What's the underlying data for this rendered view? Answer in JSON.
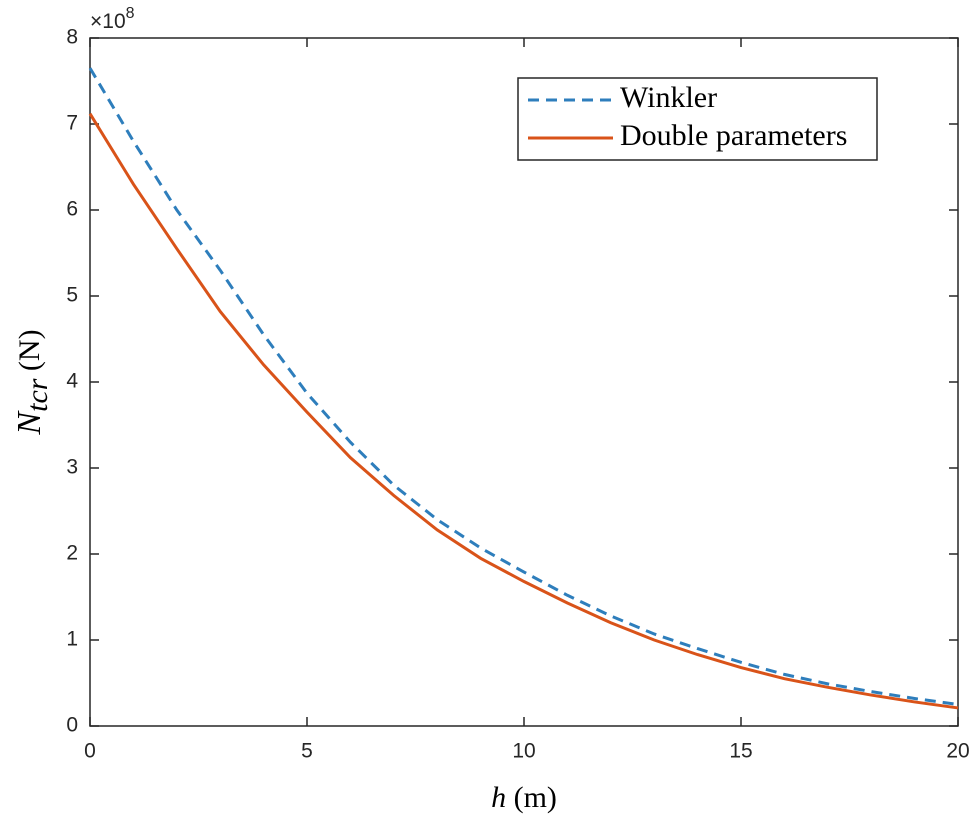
{
  "chart_data": {
    "type": "line",
    "xlabel": {
      "symbol": "h",
      "unit": "(m)"
    },
    "ylabel": {
      "symbol": "N",
      "subscript": "tcr",
      "unit": "(N)"
    },
    "y_scale_label": {
      "base": "×10",
      "exponent": "8"
    },
    "x": [
      0,
      1,
      2,
      3,
      4,
      5,
      6,
      7,
      8,
      9,
      10,
      11,
      12,
      13,
      14,
      15,
      16,
      17,
      18,
      19,
      20
    ],
    "series": [
      {
        "name": "Winkler",
        "color": "#2e7ebc",
        "linestyle": "dashed",
        "values": [
          7.65,
          6.8,
          6.0,
          5.3,
          4.55,
          3.87,
          3.3,
          2.8,
          2.4,
          2.07,
          1.79,
          1.52,
          1.28,
          1.07,
          0.9,
          0.74,
          0.6,
          0.49,
          0.4,
          0.32,
          0.25
        ]
      },
      {
        "name": "Double parameters",
        "color": "#d95319",
        "linestyle": "solid",
        "values": [
          7.12,
          6.3,
          5.55,
          4.82,
          4.2,
          3.65,
          3.12,
          2.68,
          2.28,
          1.95,
          1.68,
          1.43,
          1.2,
          1.0,
          0.83,
          0.68,
          0.55,
          0.45,
          0.36,
          0.28,
          0.21
        ]
      }
    ],
    "xlim": [
      0,
      20
    ],
    "xticks": [
      0,
      5,
      10,
      15,
      20
    ],
    "ylim": [
      0,
      8
    ],
    "yticks": [
      0,
      1,
      2,
      3,
      4,
      5,
      6,
      7,
      8
    ],
    "grid": false,
    "legend": "upper right"
  }
}
